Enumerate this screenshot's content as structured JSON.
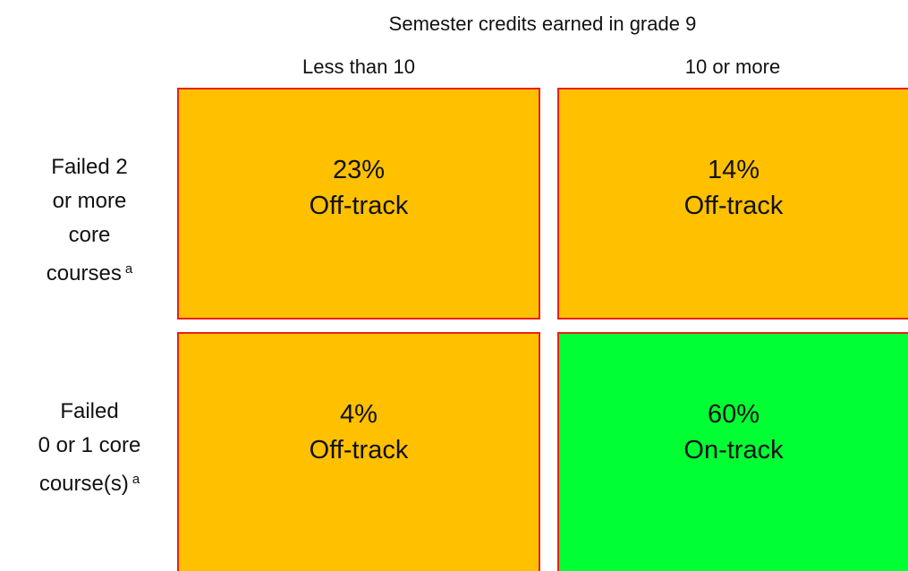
{
  "title": "Semester credits earned in grade 9",
  "columns": [
    "Less than 10",
    "10 or more"
  ],
  "rows": [
    {
      "label_lines": [
        "Failed 2",
        "or more",
        "core",
        "courses"
      ],
      "footnote": "a",
      "cells": [
        {
          "percent": "23%",
          "status": "Off-track",
          "color": "#ffc000"
        },
        {
          "percent": "14%",
          "status": "Off-track",
          "color": "#ffc000"
        }
      ]
    },
    {
      "label_lines": [
        "Failed",
        "0 or 1 core",
        "course(s)"
      ],
      "footnote": "a",
      "cells": [
        {
          "percent": "4%",
          "status": "Off-track",
          "color": "#ffc000"
        },
        {
          "percent": "60%",
          "status": "On-track",
          "color": "#00ff33"
        }
      ]
    }
  ]
}
